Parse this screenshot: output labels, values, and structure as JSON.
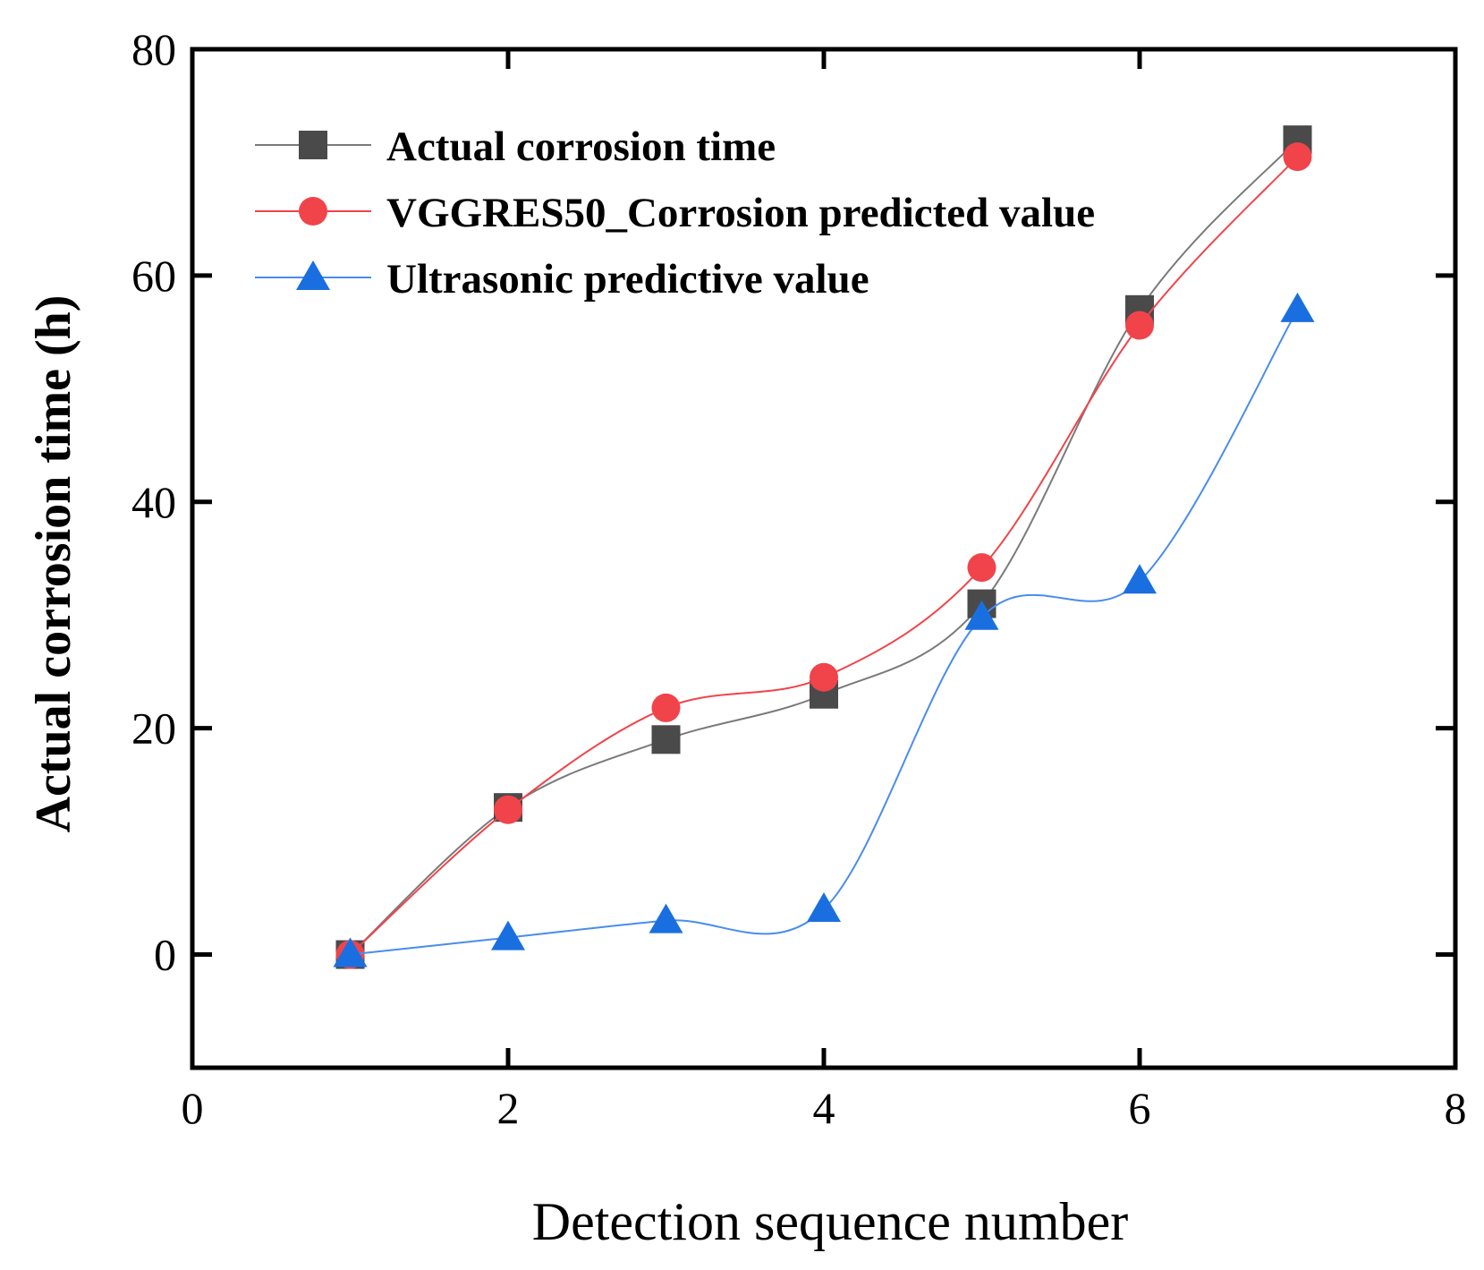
{
  "chart_data": {
    "type": "line",
    "title": "",
    "xlabel": "Detection sequence number",
    "ylabel": "Actual corrosion time (h)",
    "xlim": [
      0,
      8
    ],
    "ylim": [
      -10,
      80
    ],
    "xticks": [
      0,
      2,
      4,
      6,
      8
    ],
    "yticks": [
      0,
      20,
      40,
      60,
      80
    ],
    "xtick_labels": [
      "0",
      "2",
      "4",
      "6",
      "8"
    ],
    "ytick_labels": [
      "0",
      "20",
      "40",
      "60",
      "80"
    ],
    "legend_position": "top-left",
    "smoothed": true,
    "x": [
      1,
      2,
      3,
      4,
      5,
      6,
      7
    ],
    "series": [
      {
        "name": "Actual corrosion time",
        "marker": "square",
        "color": "#4a4a4a",
        "line_color": "#7a7a7a",
        "values": [
          0,
          13,
          19,
          23,
          31,
          57,
          72
        ]
      },
      {
        "name": "VGGRES50_Corrosion predicted value",
        "marker": "circle",
        "color": "#f0444a",
        "line_color": "#f0444a",
        "values": [
          0,
          12.8,
          21.8,
          24.5,
          34.2,
          55.6,
          70.5
        ]
      },
      {
        "name": "Ultrasonic predictive value",
        "marker": "triangle",
        "color": "#1a6fe0",
        "line_color": "#4a8cec",
        "values": [
          0,
          1.5,
          3,
          4,
          29.8,
          33,
          57
        ]
      }
    ]
  }
}
